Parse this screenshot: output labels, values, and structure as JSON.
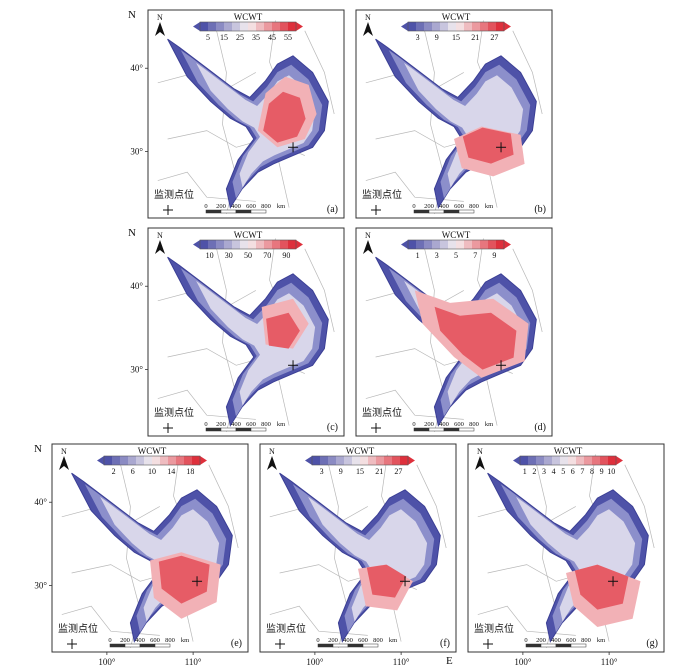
{
  "figure": {
    "north_label": "N",
    "east_label": "E"
  },
  "chart_data": [
    {
      "type": "heatmap",
      "panel_label": "(a)",
      "legend_title": "WCWT",
      "legend_ticks": [
        "5",
        "15",
        "25",
        "35",
        "45",
        "55"
      ],
      "y_ticks": [
        "40°",
        "30°"
      ],
      "x_ticks": [],
      "station_label": "监测点位",
      "scale_bar": [
        "0",
        "200",
        "400",
        "600",
        "800",
        "km"
      ],
      "north_arrow": "N"
    },
    {
      "type": "heatmap",
      "panel_label": "(b)",
      "legend_title": "WCWT",
      "legend_ticks": [
        "3",
        "9",
        "15",
        "21",
        "27"
      ],
      "y_ticks": [],
      "x_ticks": [],
      "station_label": "监测点位",
      "scale_bar": [
        "0",
        "200",
        "400",
        "600",
        "800",
        "km"
      ],
      "north_arrow": "N"
    },
    {
      "type": "heatmap",
      "panel_label": "(c)",
      "legend_title": "WCWT",
      "legend_ticks": [
        "10",
        "30",
        "50",
        "70",
        "90"
      ],
      "y_ticks": [
        "40°",
        "30°"
      ],
      "x_ticks": [],
      "station_label": "监测点位",
      "scale_bar": [
        "0",
        "200",
        "400",
        "600",
        "800",
        "km"
      ],
      "north_arrow": "N"
    },
    {
      "type": "heatmap",
      "panel_label": "(d)",
      "legend_title": "WCWT",
      "legend_ticks": [
        "1",
        "3",
        "5",
        "7",
        "9"
      ],
      "y_ticks": [],
      "x_ticks": [],
      "station_label": "监测点位",
      "scale_bar": [
        "0",
        "200",
        "400",
        "600",
        "800",
        "km"
      ],
      "north_arrow": "N"
    },
    {
      "type": "heatmap",
      "panel_label": "(e)",
      "legend_title": "WCWT",
      "legend_ticks": [
        "2",
        "6",
        "10",
        "14",
        "18"
      ],
      "y_ticks": [
        "40°",
        "30°"
      ],
      "x_ticks": [
        "100°",
        "110°"
      ],
      "station_label": "监测点位",
      "scale_bar": [
        "0",
        "200",
        "400",
        "600",
        "800",
        "km"
      ],
      "north_arrow": "N"
    },
    {
      "type": "heatmap",
      "panel_label": "(f)",
      "legend_title": "WCWT",
      "legend_ticks": [
        "3",
        "9",
        "15",
        "21",
        "27"
      ],
      "y_ticks": [],
      "x_ticks": [
        "100°",
        "110°"
      ],
      "station_label": "监测点位",
      "scale_bar": [
        "0",
        "200",
        "400",
        "600",
        "800",
        "km"
      ],
      "north_arrow": "N"
    },
    {
      "type": "heatmap",
      "panel_label": "(g)",
      "legend_title": "WCWT",
      "legend_ticks": [
        "1",
        "2",
        "3",
        "4",
        "5",
        "6",
        "7",
        "8",
        "9",
        "10"
      ],
      "y_ticks": [],
      "x_ticks": [
        "100°",
        "110°"
      ],
      "station_label": "监测点位",
      "scale_bar": [
        "0",
        "200",
        "400",
        "600",
        "800",
        "km"
      ],
      "north_arrow": "N"
    }
  ]
}
